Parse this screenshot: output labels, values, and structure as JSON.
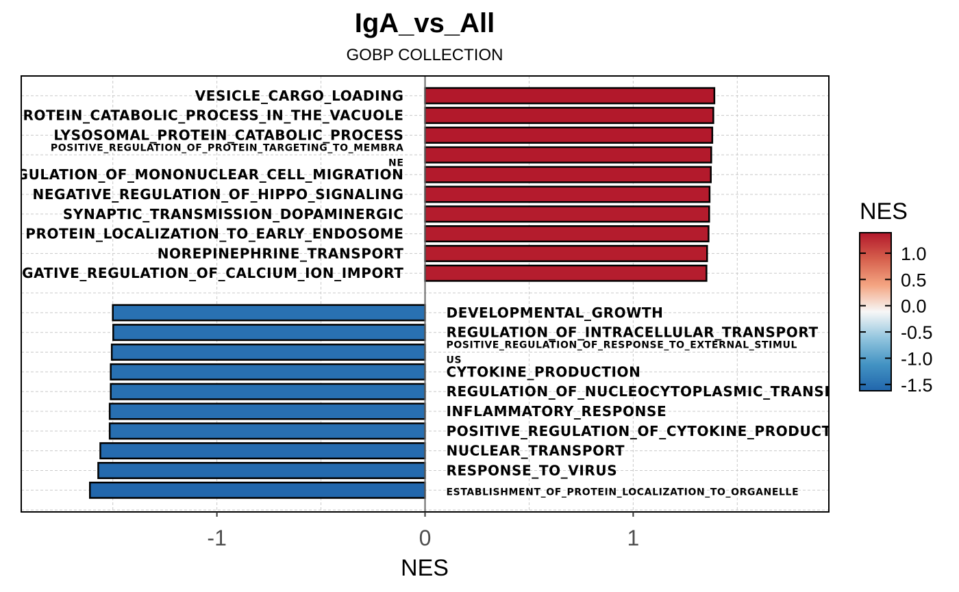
{
  "chart_data": {
    "type": "bar",
    "orientation": "horizontal",
    "title": "IgA_vs_All",
    "subtitle": "GOBP COLLECTION",
    "xlabel": "NES",
    "ylabel": "",
    "xlim": [
      -1.94,
      1.94
    ],
    "x_ticks": [
      {
        "value": -1,
        "label": "-1"
      },
      {
        "value": 0,
        "label": "0"
      },
      {
        "value": 1,
        "label": "1"
      }
    ],
    "grid": true,
    "legend": {
      "title": "NES",
      "position": "right",
      "range": [
        -1.62,
        1.39
      ],
      "ticks": [
        {
          "value": 1.0,
          "label": "1.0"
        },
        {
          "value": 0.5,
          "label": "0.5"
        },
        {
          "value": 0.0,
          "label": "0.0"
        },
        {
          "value": -0.5,
          "label": "-0.5"
        },
        {
          "value": -1.0,
          "label": "-1.0"
        },
        {
          "value": -1.5,
          "label": "-1.5"
        }
      ],
      "colors": [
        "#2166ac",
        "#4393c3",
        "#92c5de",
        "#f7f7f7",
        "#f4a582",
        "#d6604d",
        "#b2182b"
      ]
    },
    "categories": [
      "VESICLE_CARGO_LOADING",
      "PROTEIN_CATABOLIC_PROCESS_IN_THE_VACUOLE",
      "LYSOSOMAL_PROTEIN_CATABOLIC_PROCESS",
      "POSITIVE_REGULATION_OF_PROTEIN_TARGETING_TO_MEMBRANE",
      "REGULATION_OF_MONONUCLEAR_CELL_MIGRATION",
      "NEGATIVE_REGULATION_OF_HIPPO_SIGNALING",
      "SYNAPTIC_TRANSMISSION_DOPAMINERGIC",
      "PROTEIN_LOCALIZATION_TO_EARLY_ENDOSOME",
      "NOREPINEPHRINE_TRANSPORT",
      "NEGATIVE_REGULATION_OF_CALCIUM_ION_IMPORT",
      "DEVELOPMENTAL_GROWTH",
      "REGULATION_OF_INTRACELLULAR_TRANSPORT",
      "POSITIVE_REGULATION_OF_RESPONSE_TO_EXTERNAL_STIMULUS",
      "CYTOKINE_PRODUCTION",
      "REGULATION_OF_NUCLEOCYTOPLASMIC_TRANSPORT",
      "INFLAMMATORY_RESPONSE",
      "POSITIVE_REGULATION_OF_CYTOKINE_PRODUCTION",
      "NUCLEAR_TRANSPORT",
      "RESPONSE_TO_VIRUS",
      "ESTABLISHMENT_OF_PROTEIN_LOCALIZATION_TO_ORGANELLE"
    ],
    "values": [
      1.39,
      1.385,
      1.38,
      1.375,
      1.373,
      1.367,
      1.365,
      1.362,
      1.355,
      1.352,
      -1.5,
      -1.498,
      -1.505,
      -1.51,
      -1.51,
      -1.515,
      -1.515,
      -1.56,
      -1.57,
      -1.61
    ],
    "label_lines": [
      [
        "VESICLE_CARGO_LOADING"
      ],
      [
        "PROTEIN_CATABOLIC_PROCESS_IN_THE_VACUOLE"
      ],
      [
        "LYSOSOMAL_PROTEIN_CATABOLIC_PROCESS"
      ],
      [
        "POSITIVE_REGULATION_OF_PROTEIN_TARGETING_TO_MEMBRA",
        "NE"
      ],
      [
        "REGULATION_OF_MONONUCLEAR_CELL_MIGRATION"
      ],
      [
        "NEGATIVE_REGULATION_OF_HIPPO_SIGNALING"
      ],
      [
        "SYNAPTIC_TRANSMISSION_DOPAMINERGIC"
      ],
      [
        "PROTEIN_LOCALIZATION_TO_EARLY_ENDOSOME"
      ],
      [
        "NOREPINEPHRINE_TRANSPORT"
      ],
      [
        "NEGATIVE_REGULATION_OF_CALCIUM_ION_IMPORT"
      ],
      [
        "DEVELOPMENTAL_GROWTH"
      ],
      [
        "REGULATION_OF_INTRACELLULAR_TRANSPORT"
      ],
      [
        "POSITIVE_REGULATION_OF_RESPONSE_TO_EXTERNAL_STIMUL",
        "US"
      ],
      [
        "CYTOKINE_PRODUCTION"
      ],
      [
        "REGULATION_OF_NUCLEOCYTOPLASMIC_TRANSPORT"
      ],
      [
        "INFLAMMATORY_RESPONSE"
      ],
      [
        "POSITIVE_REGULATION_OF_CYTOKINE_PRODUCTION"
      ],
      [
        "NUCLEAR_TRANSPORT"
      ],
      [
        "RESPONSE_TO_VIRUS"
      ],
      [
        "ESTABLISHMENT_OF_PROTEIN_LOCALIZATION_TO_ORGANELLE"
      ]
    ]
  }
}
